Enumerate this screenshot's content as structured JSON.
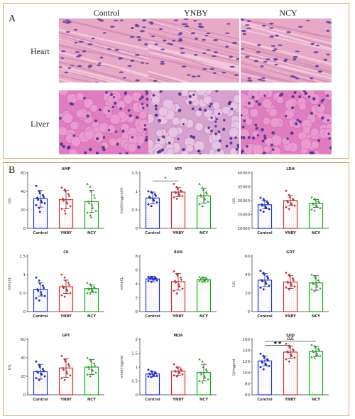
{
  "panel_a": {
    "label": "A",
    "columns": [
      "Control",
      "YNBY",
      "NCY"
    ],
    "rows": [
      "Heart",
      "Liver"
    ]
  },
  "panel_b": {
    "label": "B"
  },
  "colors": {
    "Control": "#1f2fd6",
    "YNBY": "#d42b2b",
    "NCY": "#1aa51a",
    "border": "#d9a56b"
  },
  "chart_data": [
    {
      "type": "bar",
      "title": "AMP",
      "ylabel": "U/L",
      "ylim": [
        0,
        60
      ],
      "yticks": [
        0,
        20,
        40,
        60
      ],
      "categories": [
        "Control",
        "YNBY",
        "NCY"
      ],
      "values": [
        32,
        31,
        29
      ],
      "errors": [
        9,
        10,
        12
      ],
      "points": [
        [
          46,
          40,
          38,
          36,
          34,
          33,
          31,
          30,
          28,
          27,
          25,
          22,
          18
        ],
        [
          44,
          42,
          40,
          37,
          35,
          32,
          30,
          28,
          27,
          24,
          21,
          19,
          16
        ],
        [
          48,
          45,
          40,
          36,
          33,
          29,
          27,
          25,
          22,
          19,
          17,
          14,
          12
        ]
      ],
      "significance": []
    },
    {
      "type": "bar",
      "title": "ATP",
      "ylabel": "mol/l/mgprot/h",
      "ylim": [
        0,
        1.5
      ],
      "yticks": [
        0.0,
        0.5,
        1.0,
        1.5
      ],
      "categories": [
        "Control",
        "YNBY",
        "NCY"
      ],
      "values": [
        0.82,
        0.98,
        0.88
      ],
      "errors": [
        0.16,
        0.12,
        0.2
      ],
      "points": [
        [
          1.0,
          0.98,
          0.96,
          0.92,
          0.88,
          0.85,
          0.82,
          0.78,
          0.75,
          0.7,
          0.65,
          0.6
        ],
        [
          1.2,
          1.12,
          1.06,
          1.02,
          1.0,
          0.98,
          0.96,
          0.93,
          0.9,
          0.87,
          0.84,
          0.8
        ],
        [
          1.2,
          1.1,
          1.04,
          0.98,
          0.94,
          0.9,
          0.86,
          0.82,
          0.78,
          0.72,
          0.66,
          0.6
        ]
      ],
      "significance": [
        {
          "text": "*",
          "from": 0,
          "to": 1,
          "y": 1.28
        }
      ]
    },
    {
      "type": "bar",
      "title": "LDH",
      "ylabel": "U/L",
      "ylim": [
        20000,
        40000
      ],
      "yticks": [
        20000,
        25000,
        30000,
        35000,
        40000
      ],
      "categories": [
        "Control",
        "YNBY",
        "NCY"
      ],
      "values": [
        28500,
        30000,
        29000
      ],
      "errors": [
        1500,
        1800,
        1400
      ],
      "points": [
        [
          31000,
          30500,
          30000,
          29500,
          29000,
          28600,
          28200,
          27800,
          27400,
          27000,
          26500,
          26000
        ],
        [
          33500,
          32000,
          31200,
          30600,
          30200,
          29800,
          29400,
          29000,
          28600,
          28200,
          27600,
          27000
        ],
        [
          31200,
          30700,
          30200,
          29800,
          29400,
          29000,
          28600,
          28200,
          27800,
          27300,
          26800,
          26400
        ]
      ],
      "significance": []
    },
    {
      "type": "bar",
      "title": "CK",
      "ylabel": "mmol/L",
      "ylim": [
        0,
        1.5
      ],
      "yticks": [
        0.0,
        0.5,
        1.0,
        1.5
      ],
      "categories": [
        "Control",
        "YNBY",
        "NCY"
      ],
      "values": [
        0.6,
        0.67,
        0.62
      ],
      "errors": [
        0.18,
        0.18,
        0.1
      ],
      "points": [
        [
          0.92,
          0.84,
          0.76,
          0.7,
          0.64,
          0.6,
          0.56,
          0.52,
          0.46,
          0.42,
          0.36,
          0.3
        ],
        [
          1.0,
          0.92,
          0.84,
          0.78,
          0.72,
          0.68,
          0.64,
          0.6,
          0.56,
          0.5,
          0.44,
          0.4
        ],
        [
          0.78,
          0.74,
          0.7,
          0.67,
          0.64,
          0.62,
          0.6,
          0.58,
          0.55,
          0.52,
          0.5,
          0.48
        ]
      ],
      "significance": []
    },
    {
      "type": "bar",
      "title": "BUN",
      "ylabel": "mmol/L",
      "ylim": [
        0,
        8
      ],
      "yticks": [
        0,
        2,
        4,
        6,
        8
      ],
      "categories": [
        "Control",
        "YNBY",
        "NCY"
      ],
      "values": [
        4.7,
        4.3,
        4.6
      ],
      "errors": [
        0.4,
        1.2,
        0.35
      ],
      "points": [
        [
          5.0,
          5.0,
          4.9,
          4.9,
          4.8,
          4.8,
          4.7,
          4.7,
          4.6,
          4.5,
          4.4,
          4.3
        ],
        [
          5.8,
          5.4,
          5.2,
          4.9,
          4.6,
          4.4,
          4.2,
          3.9,
          3.6,
          3.3,
          3.0,
          2.6
        ],
        [
          5.0,
          4.9,
          4.9,
          4.8,
          4.7,
          4.7,
          4.6,
          4.6,
          4.5,
          4.4,
          4.4,
          4.3
        ]
      ],
      "significance": []
    },
    {
      "type": "bar",
      "title": "GOT",
      "ylabel": "U/L",
      "ylim": [
        0,
        60
      ],
      "yticks": [
        0,
        20,
        40,
        60
      ],
      "categories": [
        "Control",
        "YNBY",
        "NCY"
      ],
      "values": [
        34,
        32,
        31
      ],
      "errors": [
        7,
        7,
        8
      ],
      "points": [
        [
          44,
          42,
          40,
          38,
          36,
          34,
          33,
          32,
          30,
          28,
          26,
          24
        ],
        [
          42,
          40,
          38,
          36,
          34,
          32,
          31,
          30,
          28,
          27,
          26,
          24
        ],
        [
          40,
          38,
          36,
          34,
          32,
          31,
          30,
          29,
          27,
          25,
          24,
          22
        ]
      ],
      "significance": []
    },
    {
      "type": "bar",
      "title": "GPT",
      "ylabel": "U/L",
      "ylim": [
        0,
        60
      ],
      "yticks": [
        0,
        20,
        40,
        60
      ],
      "categories": [
        "Control",
        "YNBY",
        "NCY"
      ],
      "values": [
        25,
        29,
        30
      ],
      "errors": [
        8,
        10,
        8
      ],
      "points": [
        [
          36,
          32,
          30,
          28,
          26,
          25,
          24,
          23,
          22,
          20,
          18,
          16
        ],
        [
          42,
          38,
          36,
          33,
          31,
          29,
          27,
          25,
          23,
          21,
          18,
          16
        ],
        [
          40,
          38,
          36,
          34,
          32,
          30,
          28,
          27,
          26,
          24,
          22,
          20
        ]
      ],
      "significance": []
    },
    {
      "type": "bar",
      "title": "MDA",
      "ylabel": "nmol/mgprot",
      "ylim": [
        0,
        2.0
      ],
      "yticks": [
        0.0,
        0.5,
        1.0,
        1.5,
        2.0
      ],
      "categories": [
        "Control",
        "YNBY",
        "NCY"
      ],
      "values": [
        0.75,
        0.85,
        0.8
      ],
      "errors": [
        0.1,
        0.15,
        0.3
      ],
      "points": [
        [
          0.9,
          0.85,
          0.82,
          0.8,
          0.78,
          0.76,
          0.74,
          0.72,
          0.7,
          0.68,
          0.66,
          0.64
        ],
        [
          1.1,
          1.0,
          0.96,
          0.92,
          0.88,
          0.86,
          0.84,
          0.82,
          0.78,
          0.74,
          0.7,
          0.66
        ],
        [
          1.28,
          1.2,
          1.0,
          0.92,
          0.86,
          0.8,
          0.74,
          0.68,
          0.62,
          0.56,
          0.5,
          0.44
        ]
      ],
      "significance": []
    },
    {
      "type": "bar",
      "title": "SOD",
      "ylabel": "U/mgprot",
      "ylim": [
        60,
        160
      ],
      "yticks": [
        60,
        80,
        100,
        120,
        140,
        160
      ],
      "categories": [
        "Control",
        "YNBY",
        "NCY"
      ],
      "values": [
        121,
        137,
        138
      ],
      "errors": [
        9,
        11,
        9
      ],
      "points": [
        [
          134,
          130,
          127,
          124,
          122,
          120,
          118,
          116,
          114,
          112,
          110,
          106
        ],
        [
          152,
          148,
          145,
          142,
          140,
          138,
          136,
          133,
          130,
          127,
          124,
          120
        ],
        [
          150,
          148,
          146,
          143,
          141,
          139,
          137,
          135,
          132,
          130,
          128,
          126
        ]
      ],
      "significance": [
        {
          "text": "ΔΔ",
          "from": 0,
          "to": 2,
          "y": 157
        },
        {
          "text": "★★",
          "from": 0,
          "to": 1,
          "y": 149
        }
      ]
    }
  ]
}
